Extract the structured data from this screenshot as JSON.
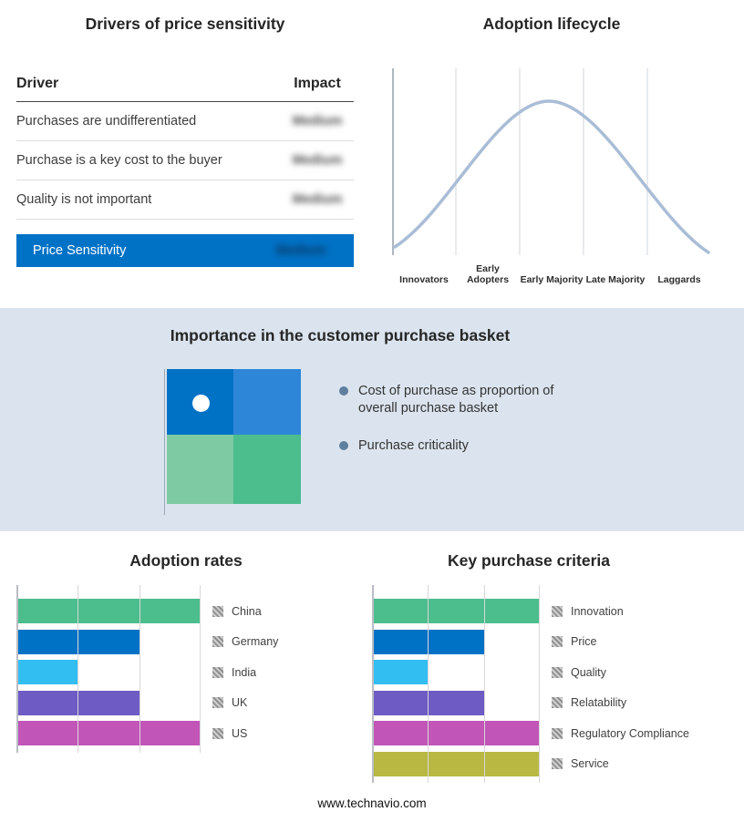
{
  "colors": {
    "accent_blue": "#0072C6",
    "band_background": "#DBE4EE",
    "curve": "#A9BDD6"
  },
  "chart_data": [
    {
      "type": "table",
      "title": "Drivers of price sensitivity",
      "columns": [
        "Driver",
        "Impact"
      ],
      "rows": [
        [
          "Purchases are undifferentiated",
          "Medium"
        ],
        [
          "Purchase is a key cost to the buyer",
          "Medium"
        ],
        [
          "Quality is not important",
          "Medium"
        ]
      ],
      "summary_row": [
        "Price Sensitivity",
        "Medium"
      ]
    },
    {
      "type": "line",
      "title": "Adoption lifecycle",
      "shape": "bell curve (normal distribution), no numeric axes shown",
      "categories": [
        "Innovators",
        "Early Adopters",
        "Early Majority",
        "Late Majority",
        "Laggards"
      ]
    },
    {
      "type": "bar",
      "title": "Adoption rates",
      "orientation": "horizontal",
      "categories": [
        "China",
        "Germany",
        "India",
        "UK",
        "US"
      ],
      "values": [
        3,
        2,
        1,
        2,
        3
      ],
      "xlim": [
        0,
        3
      ],
      "grid": true,
      "legend_position": "right",
      "colors": [
        "#4CBD8C",
        "#0072C6",
        "#33BEF2",
        "#6E5BC3",
        "#C155B8"
      ]
    },
    {
      "type": "bar",
      "title": "Key purchase criteria",
      "orientation": "horizontal",
      "categories": [
        "Innovation",
        "Price",
        "Quality",
        "Relatability",
        "Regulatory Compliance",
        "Service"
      ],
      "values": [
        3,
        2,
        1,
        2,
        3,
        3
      ],
      "xlim": [
        0,
        3
      ],
      "grid": true,
      "legend_position": "right",
      "colors": [
        "#4CBD8C",
        "#0072C6",
        "#33BEF2",
        "#6E5BC3",
        "#C155B8",
        "#B9B843"
      ]
    }
  ],
  "basket": {
    "title": "Importance in the customer purchase basket",
    "bullets": [
      "Cost of purchase as proportion of overall purchase basket",
      "Purchase criticality"
    ],
    "quadrant_colors": [
      "#0072C6",
      "#2E86D8",
      "#7ECAA3",
      "#4CBD8D"
    ]
  },
  "footer": {
    "text": "www.technavio.com"
  }
}
